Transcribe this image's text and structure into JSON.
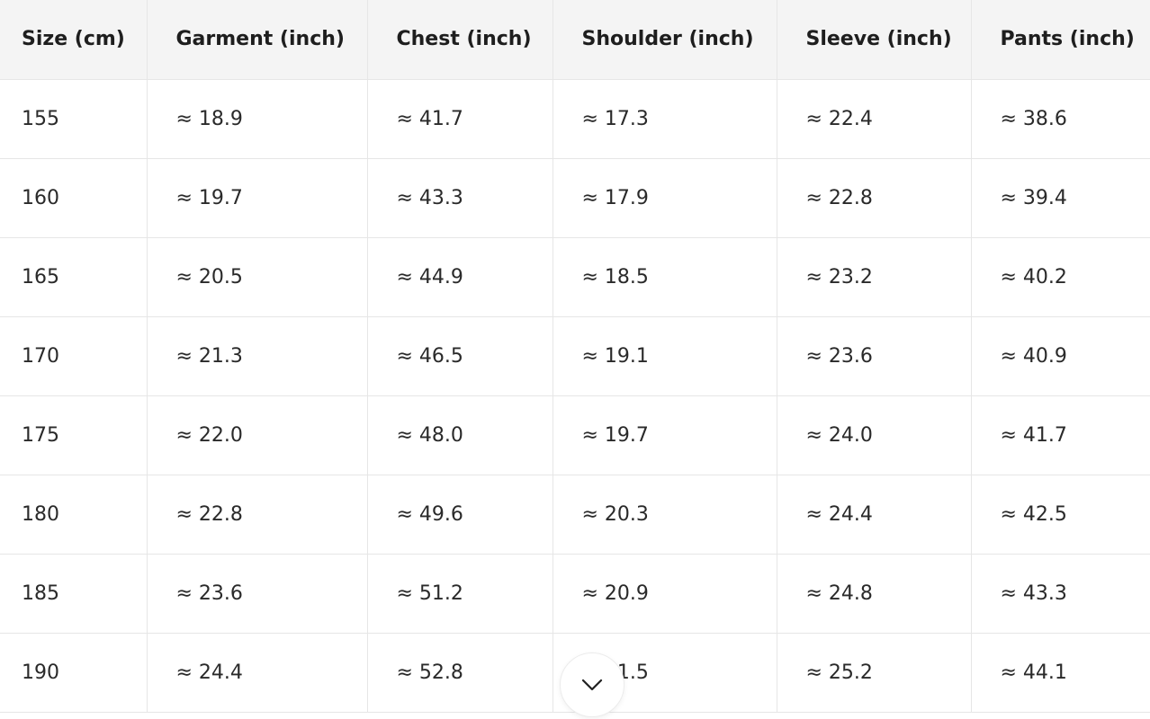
{
  "table": {
    "headers": [
      "Size (cm)",
      "Garment (inch)",
      "Chest (inch)",
      "Shoulder (inch)",
      "Sleeve (inch)",
      "Pants (inch)"
    ],
    "rows": [
      [
        "155",
        "≈ 18.9",
        "≈ 41.7",
        "≈ 17.3",
        "≈ 22.4",
        "≈ 38.6"
      ],
      [
        "160",
        "≈ 19.7",
        "≈ 43.3",
        "≈ 17.9",
        "≈ 22.8",
        "≈ 39.4"
      ],
      [
        "165",
        "≈ 20.5",
        "≈ 44.9",
        "≈ 18.5",
        "≈ 23.2",
        "≈ 40.2"
      ],
      [
        "170",
        "≈ 21.3",
        "≈ 46.5",
        "≈ 19.1",
        "≈ 23.6",
        "≈ 40.9"
      ],
      [
        "175",
        "≈ 22.0",
        "≈ 48.0",
        "≈ 19.7",
        "≈ 24.0",
        "≈ 41.7"
      ],
      [
        "180",
        "≈ 22.8",
        "≈ 49.6",
        "≈ 20.3",
        "≈ 24.4",
        "≈ 42.5"
      ],
      [
        "185",
        "≈ 23.6",
        "≈ 51.2",
        "≈ 20.9",
        "≈ 24.8",
        "≈ 43.3"
      ],
      [
        "190",
        "≈ 24.4",
        "≈ 52.8",
        "≈ 21.5",
        "≈ 25.2",
        "≈ 44.1"
      ]
    ]
  },
  "scroll_button": {
    "icon": "chevron-down-icon"
  },
  "colors": {
    "header_background": "#f4f4f4",
    "border": "#e6e6e6",
    "text": "#222222"
  }
}
